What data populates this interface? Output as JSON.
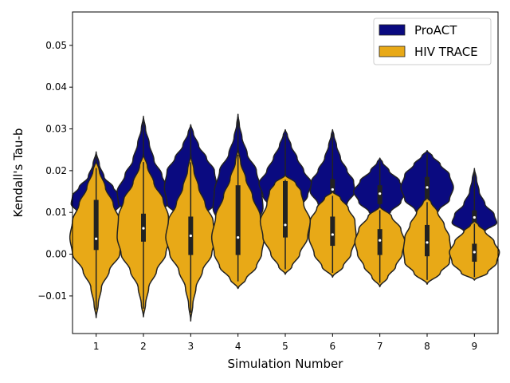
{
  "chart_data": {
    "type": "violin",
    "xlabel": "Simulation Number",
    "ylabel": "Kendall's Tau-b",
    "categories": [
      "1",
      "2",
      "3",
      "4",
      "5",
      "6",
      "7",
      "8",
      "9"
    ],
    "ylim": [
      -0.019,
      0.058
    ],
    "yticks": [
      -0.01,
      0.0,
      0.01,
      0.02,
      0.03,
      0.04,
      0.05
    ],
    "ytick_labels": [
      "−0.01",
      "0.00",
      "0.01",
      "0.02",
      "0.03",
      "0.04",
      "0.05"
    ],
    "legend_position": "top-right",
    "series": [
      {
        "name": "ProACT",
        "color": "#0a0a80",
        "violins": [
          {
            "min": 0.0065,
            "max": 0.0245,
            "q1": 0.01,
            "median": 0.013,
            "q3": 0.016,
            "profile": [
              [
                0.0065,
                0.0
              ],
              [
                0.008,
                0.25
              ],
              [
                0.01,
                0.7
              ],
              [
                0.012,
                0.95
              ],
              [
                0.014,
                0.9
              ],
              [
                0.016,
                0.65
              ],
              [
                0.0185,
                0.3
              ],
              [
                0.0215,
                0.12
              ],
              [
                0.0245,
                0.0
              ]
            ]
          },
          {
            "min": 0.0085,
            "max": 0.033,
            "q1": 0.011,
            "median": 0.015,
            "q3": 0.0205,
            "profile": [
              [
                0.0085,
                0.0
              ],
              [
                0.01,
                0.45
              ],
              [
                0.012,
                0.95
              ],
              [
                0.015,
                1.0
              ],
              [
                0.019,
                0.7
              ],
              [
                0.0225,
                0.4
              ],
              [
                0.0265,
                0.22
              ],
              [
                0.03,
                0.08
              ],
              [
                0.033,
                0.0
              ]
            ]
          },
          {
            "min": 0.007,
            "max": 0.031,
            "q1": 0.01,
            "median": 0.0155,
            "q3": 0.02,
            "profile": [
              [
                0.007,
                0.0
              ],
              [
                0.009,
                0.45
              ],
              [
                0.012,
                0.9
              ],
              [
                0.016,
                1.0
              ],
              [
                0.02,
                0.9
              ],
              [
                0.023,
                0.6
              ],
              [
                0.026,
                0.3
              ],
              [
                0.029,
                0.1
              ],
              [
                0.031,
                0.0
              ]
            ]
          },
          {
            "min": 0.004,
            "max": 0.0335,
            "q1": 0.009,
            "median": 0.014,
            "q3": 0.018,
            "profile": [
              [
                0.004,
                0.0
              ],
              [
                0.007,
                0.7
              ],
              [
                0.011,
                0.95
              ],
              [
                0.015,
                0.9
              ],
              [
                0.02,
                0.7
              ],
              [
                0.024,
                0.35
              ],
              [
                0.028,
                0.15
              ],
              [
                0.031,
                0.05
              ],
              [
                0.0335,
                0.0
              ]
            ]
          },
          {
            "min": 0.009,
            "max": 0.0298,
            "q1": 0.0135,
            "median": 0.016,
            "q3": 0.0185,
            "profile": [
              [
                0.009,
                0.0
              ],
              [
                0.011,
                0.55
              ],
              [
                0.014,
                0.85
              ],
              [
                0.017,
                1.0
              ],
              [
                0.02,
                0.7
              ],
              [
                0.023,
                0.45
              ],
              [
                0.026,
                0.22
              ],
              [
                0.0285,
                0.08
              ],
              [
                0.0298,
                0.0
              ]
            ]
          },
          {
            "min": 0.01,
            "max": 0.0298,
            "q1": 0.013,
            "median": 0.0155,
            "q3": 0.018,
            "profile": [
              [
                0.01,
                0.0
              ],
              [
                0.012,
                0.55
              ],
              [
                0.015,
                0.85
              ],
              [
                0.0175,
                0.8
              ],
              [
                0.02,
                0.55
              ],
              [
                0.023,
                0.3
              ],
              [
                0.026,
                0.15
              ],
              [
                0.0285,
                0.05
              ],
              [
                0.0298,
                0.0
              ]
            ]
          },
          {
            "min": 0.0085,
            "max": 0.023,
            "q1": 0.012,
            "median": 0.0145,
            "q3": 0.0165,
            "profile": [
              [
                0.0085,
                0.0
              ],
              [
                0.01,
                0.4
              ],
              [
                0.0125,
                0.8
              ],
              [
                0.015,
                1.0
              ],
              [
                0.0175,
                0.75
              ],
              [
                0.02,
                0.35
              ],
              [
                0.022,
                0.1
              ],
              [
                0.023,
                0.0
              ]
            ]
          },
          {
            "min": 0.009,
            "max": 0.0248,
            "q1": 0.013,
            "median": 0.016,
            "q3": 0.0185,
            "profile": [
              [
                0.009,
                0.0
              ],
              [
                0.0105,
                0.45
              ],
              [
                0.013,
                0.85
              ],
              [
                0.016,
                1.0
              ],
              [
                0.019,
                0.85
              ],
              [
                0.0215,
                0.5
              ],
              [
                0.0235,
                0.2
              ],
              [
                0.0248,
                0.0
              ]
            ]
          },
          {
            "min": 0.004,
            "max": 0.0205,
            "q1": 0.007,
            "median": 0.0088,
            "q3": 0.0105,
            "profile": [
              [
                0.004,
                0.0
              ],
              [
                0.0055,
                0.4
              ],
              [
                0.0075,
                0.85
              ],
              [
                0.0095,
                0.75
              ],
              [
                0.012,
                0.4
              ],
              [
                0.015,
                0.18
              ],
              [
                0.018,
                0.08
              ],
              [
                0.0205,
                0.0
              ]
            ]
          }
        ]
      },
      {
        "name": "HIV TRACE",
        "color": "#e8a917",
        "violins": [
          {
            "min": -0.0152,
            "max": 0.0225,
            "q1": 0.001,
            "median": 0.0037,
            "q3": 0.013,
            "profile": [
              [
                -0.0152,
                0.0
              ],
              [
                -0.012,
                0.08
              ],
              [
                -0.008,
                0.2
              ],
              [
                -0.004,
                0.5
              ],
              [
                0.0,
                0.9
              ],
              [
                0.004,
                1.0
              ],
              [
                0.008,
                0.9
              ],
              [
                0.012,
                0.65
              ],
              [
                0.016,
                0.35
              ],
              [
                0.02,
                0.12
              ],
              [
                0.0225,
                0.0
              ]
            ]
          },
          {
            "min": -0.015,
            "max": 0.024,
            "q1": 0.003,
            "median": 0.0062,
            "q3": 0.0097,
            "profile": [
              [
                -0.015,
                0.0
              ],
              [
                -0.012,
                0.08
              ],
              [
                -0.008,
                0.2
              ],
              [
                -0.004,
                0.5
              ],
              [
                0.0,
                0.85
              ],
              [
                0.004,
                1.0
              ],
              [
                0.009,
                0.95
              ],
              [
                0.013,
                0.75
              ],
              [
                0.017,
                0.4
              ],
              [
                0.021,
                0.15
              ],
              [
                0.024,
                0.0
              ]
            ]
          },
          {
            "min": -0.016,
            "max": 0.024,
            "q1": -0.0002,
            "median": 0.0044,
            "q3": 0.009,
            "profile": [
              [
                -0.016,
                0.0
              ],
              [
                -0.012,
                0.08
              ],
              [
                -0.008,
                0.2
              ],
              [
                -0.004,
                0.45
              ],
              [
                0.0,
                0.8
              ],
              [
                0.004,
                0.95
              ],
              [
                0.008,
                0.85
              ],
              [
                0.012,
                0.55
              ],
              [
                0.016,
                0.3
              ],
              [
                0.02,
                0.12
              ],
              [
                0.024,
                0.0
              ]
            ]
          },
          {
            "min": -0.0082,
            "max": 0.0255,
            "q1": -0.0002,
            "median": 0.004,
            "q3": 0.0165,
            "profile": [
              [
                -0.0082,
                0.0
              ],
              [
                -0.006,
                0.3
              ],
              [
                -0.003,
                0.7
              ],
              [
                0.0,
                0.9
              ],
              [
                0.004,
                1.0
              ],
              [
                0.009,
                0.85
              ],
              [
                0.014,
                0.55
              ],
              [
                0.018,
                0.3
              ],
              [
                0.022,
                0.1
              ],
              [
                0.0255,
                0.0
              ]
            ]
          },
          {
            "min": -0.0048,
            "max": 0.019,
            "q1": 0.004,
            "median": 0.007,
            "q3": 0.0175,
            "profile": [
              [
                -0.0048,
                0.0
              ],
              [
                -0.003,
                0.25
              ],
              [
                0.0,
                0.55
              ],
              [
                0.004,
                0.85
              ],
              [
                0.008,
                0.95
              ],
              [
                0.012,
                0.7
              ],
              [
                0.015,
                0.6
              ],
              [
                0.017,
                0.4
              ],
              [
                0.019,
                0.0
              ]
            ]
          },
          {
            "min": -0.0055,
            "max": 0.015,
            "q1": 0.002,
            "median": 0.0047,
            "q3": 0.009,
            "profile": [
              [
                -0.0055,
                0.0
              ],
              [
                -0.003,
                0.4
              ],
              [
                0.0,
                0.7
              ],
              [
                0.004,
                0.9
              ],
              [
                0.008,
                0.85
              ],
              [
                0.011,
                0.6
              ],
              [
                0.0135,
                0.3
              ],
              [
                0.015,
                0.0
              ]
            ]
          },
          {
            "min": -0.0078,
            "max": 0.0115,
            "q1": -0.0002,
            "median": 0.0033,
            "q3": 0.006,
            "profile": [
              [
                -0.0078,
                0.0
              ],
              [
                -0.0055,
                0.3
              ],
              [
                -0.003,
                0.6
              ],
              [
                0.0,
                0.85
              ],
              [
                0.003,
                0.95
              ],
              [
                0.006,
                0.8
              ],
              [
                0.009,
                0.45
              ],
              [
                0.0115,
                0.0
              ]
            ]
          },
          {
            "min": -0.0072,
            "max": 0.0135,
            "q1": -0.0005,
            "median": 0.0028,
            "q3": 0.007,
            "profile": [
              [
                -0.0072,
                0.0
              ],
              [
                -0.0045,
                0.5
              ],
              [
                -0.002,
                0.85
              ],
              [
                0.001,
                0.9
              ],
              [
                0.004,
                0.85
              ],
              [
                0.007,
                0.65
              ],
              [
                0.01,
                0.4
              ],
              [
                0.0125,
                0.15
              ],
              [
                0.0135,
                0.0
              ]
            ]
          },
          {
            "min": -0.0062,
            "max": 0.008,
            "q1": -0.0018,
            "median": 0.0005,
            "q3": 0.0025,
            "profile": [
              [
                -0.0062,
                0.0
              ],
              [
                -0.0045,
                0.5
              ],
              [
                -0.002,
                0.85
              ],
              [
                0.0005,
                0.95
              ],
              [
                0.003,
                0.75
              ],
              [
                0.0055,
                0.4
              ],
              [
                0.007,
                0.15
              ],
              [
                0.008,
                0.0
              ]
            ]
          }
        ]
      }
    ]
  }
}
